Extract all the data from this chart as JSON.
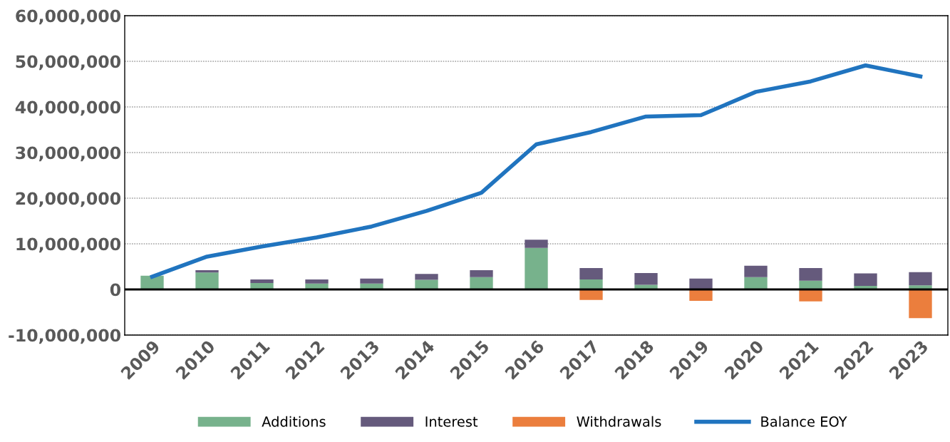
{
  "chart_data": {
    "type": "bar",
    "stacked": true,
    "categories": [
      "2009",
      "2010",
      "2011",
      "2012",
      "2013",
      "2014",
      "2015",
      "2016",
      "2017",
      "2018",
      "2019",
      "2020",
      "2021",
      "2022",
      "2023"
    ],
    "series": [
      {
        "name": "Additions",
        "color": "#77b28c",
        "values": [
          3000000.0,
          3700000.0,
          1400000.0,
          1300000.0,
          1300000.0,
          2100000.0,
          2700000.0,
          9100000.0,
          2200000.0,
          1000000.0,
          0,
          2700000.0,
          1900000.0,
          800000.0,
          900000.0
        ]
      },
      {
        "name": "Interest",
        "color": "#655a7c",
        "values": [
          0,
          500000.0,
          800000.0,
          900000.0,
          1100000.0,
          1300000.0,
          1500000.0,
          1800000.0,
          2500000.0,
          2600000.0,
          2400000.0,
          2500000.0,
          2800000.0,
          2700000.0,
          2900000.0
        ]
      },
      {
        "name": "Withdrawals",
        "color": "#eb7e3d",
        "values": [
          0,
          0,
          0,
          0,
          0,
          0,
          0,
          0,
          -2300000.0,
          0,
          -2500000.0,
          0,
          -2600000.0,
          0,
          -6300000.0
        ]
      },
      {
        "name": "Balance EOY",
        "type": "line",
        "color": "#2074bf",
        "values": [
          2800000.0,
          7200000.0,
          9400000.0,
          11400000.0,
          13800000.0,
          17200000.0,
          21200000.0,
          31800000.0,
          34500000.0,
          37900000.0,
          38200000.0,
          43300000.0,
          45600000.0,
          49100000.0,
          46700000.0
        ]
      }
    ],
    "ylim": [
      -10000000,
      60000000
    ],
    "yticks": [
      {
        "value": -10000000,
        "label": "-10,000,000"
      },
      {
        "value": 0,
        "label": "0"
      },
      {
        "value": 10000000,
        "label": "10,000,000"
      },
      {
        "value": 20000000,
        "label": "20,000,000"
      },
      {
        "value": 30000000,
        "label": "30,000,000"
      },
      {
        "value": 40000000,
        "label": "40,000,000"
      },
      {
        "value": 50000000,
        "label": "50,000,000"
      },
      {
        "value": 60000000,
        "label": "60,000,000"
      }
    ],
    "grid": "y",
    "legend": "bottom",
    "marker": "none",
    "line_style": "solid"
  }
}
